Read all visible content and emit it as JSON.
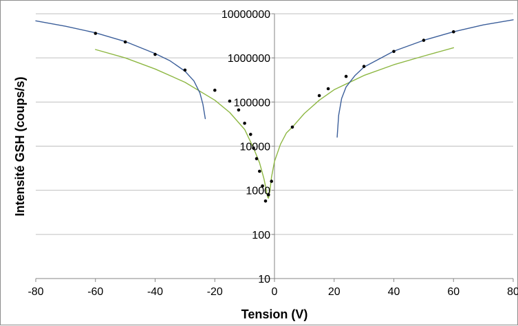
{
  "chart_data": {
    "type": "scatter",
    "title": "",
    "xlabel": "Tension (V)",
    "ylabel": "Intensité GSH (coups/s)",
    "xlim": [
      -80,
      80
    ],
    "ylim": [
      10,
      10000000
    ],
    "yscale": "log",
    "grid": "horizontal major gridlines",
    "legend": "none",
    "x_ticks": [
      -80,
      -60,
      -40,
      -20,
      0,
      20,
      40,
      60,
      80
    ],
    "x_tick_labels": [
      "-80",
      "-60",
      "-40",
      "-20",
      "0",
      "20",
      "40",
      "60",
      "80"
    ],
    "y_ticks": [
      10,
      100,
      1000,
      10000,
      100000,
      1000000,
      10000000
    ],
    "y_tick_labels": [
      "10",
      "100",
      "1000",
      "10000",
      "100000",
      "1000000",
      "10000000"
    ],
    "series": [
      {
        "kind": "points",
        "color": "#000000",
        "points": [
          [
            -60,
            3600000
          ],
          [
            -50,
            2300000
          ],
          [
            -40,
            1200000
          ],
          [
            -30,
            530000
          ],
          [
            -20,
            185000
          ],
          [
            -15,
            105000
          ],
          [
            -12,
            66000
          ],
          [
            -10,
            33000
          ],
          [
            -8,
            18500
          ],
          [
            -7,
            9000
          ],
          [
            -6,
            5200
          ],
          [
            -5,
            2700
          ],
          [
            -4,
            1250
          ],
          [
            -3,
            570
          ],
          [
            -2,
            790
          ],
          [
            -1,
            1600
          ],
          [
            6,
            27000
          ],
          [
            15,
            140000
          ],
          [
            18,
            200000
          ],
          [
            24,
            380000
          ],
          [
            30,
            640000
          ],
          [
            40,
            1400000
          ],
          [
            50,
            2500000
          ],
          [
            60,
            3900000
          ]
        ]
      },
      {
        "kind": "fit-line",
        "color": "#8db742",
        "points": [
          [
            -60,
            1550000
          ],
          [
            -50,
            1000000
          ],
          [
            -40,
            560000
          ],
          [
            -30,
            280000
          ],
          [
            -20,
            110000
          ],
          [
            -15,
            58000
          ],
          [
            -10,
            24000
          ],
          [
            -7,
            9000
          ],
          [
            -5,
            4200
          ],
          [
            -3.5,
            1800
          ],
          [
            -2.6,
            900
          ],
          [
            -2.3,
            700
          ],
          [
            -2,
            660
          ],
          [
            -1.5,
            1000
          ],
          [
            -1,
            2000
          ],
          [
            0,
            4500
          ],
          [
            2,
            11000
          ],
          [
            4,
            20000
          ],
          [
            6,
            27000
          ],
          [
            10,
            55000
          ],
          [
            15,
            110000
          ],
          [
            20,
            190000
          ],
          [
            30,
            400000
          ],
          [
            40,
            700000
          ],
          [
            50,
            1100000
          ],
          [
            60,
            1700000
          ]
        ]
      },
      {
        "kind": "fit-line",
        "color": "#3b5e9a",
        "points": [
          [
            -80,
            6900000
          ],
          [
            -70,
            5200000
          ],
          [
            -60,
            3700000
          ],
          [
            -50,
            2350000
          ],
          [
            -40,
            1250000
          ],
          [
            -35,
            860000
          ],
          [
            -30,
            500000
          ],
          [
            -27,
            300000
          ],
          [
            -25,
            160000
          ],
          [
            -24,
            90000
          ],
          [
            -23.2,
            42000
          ]
        ]
      },
      {
        "kind": "fit-line",
        "color": "#3b5e9a",
        "points": [
          [
            21,
            16000
          ],
          [
            21.5,
            50000
          ],
          [
            22.5,
            120000
          ],
          [
            24,
            220000
          ],
          [
            27,
            400000
          ],
          [
            30,
            620000
          ],
          [
            40,
            1420000
          ],
          [
            50,
            2500000
          ],
          [
            60,
            3900000
          ],
          [
            70,
            5600000
          ],
          [
            80,
            7300000
          ]
        ]
      }
    ]
  }
}
